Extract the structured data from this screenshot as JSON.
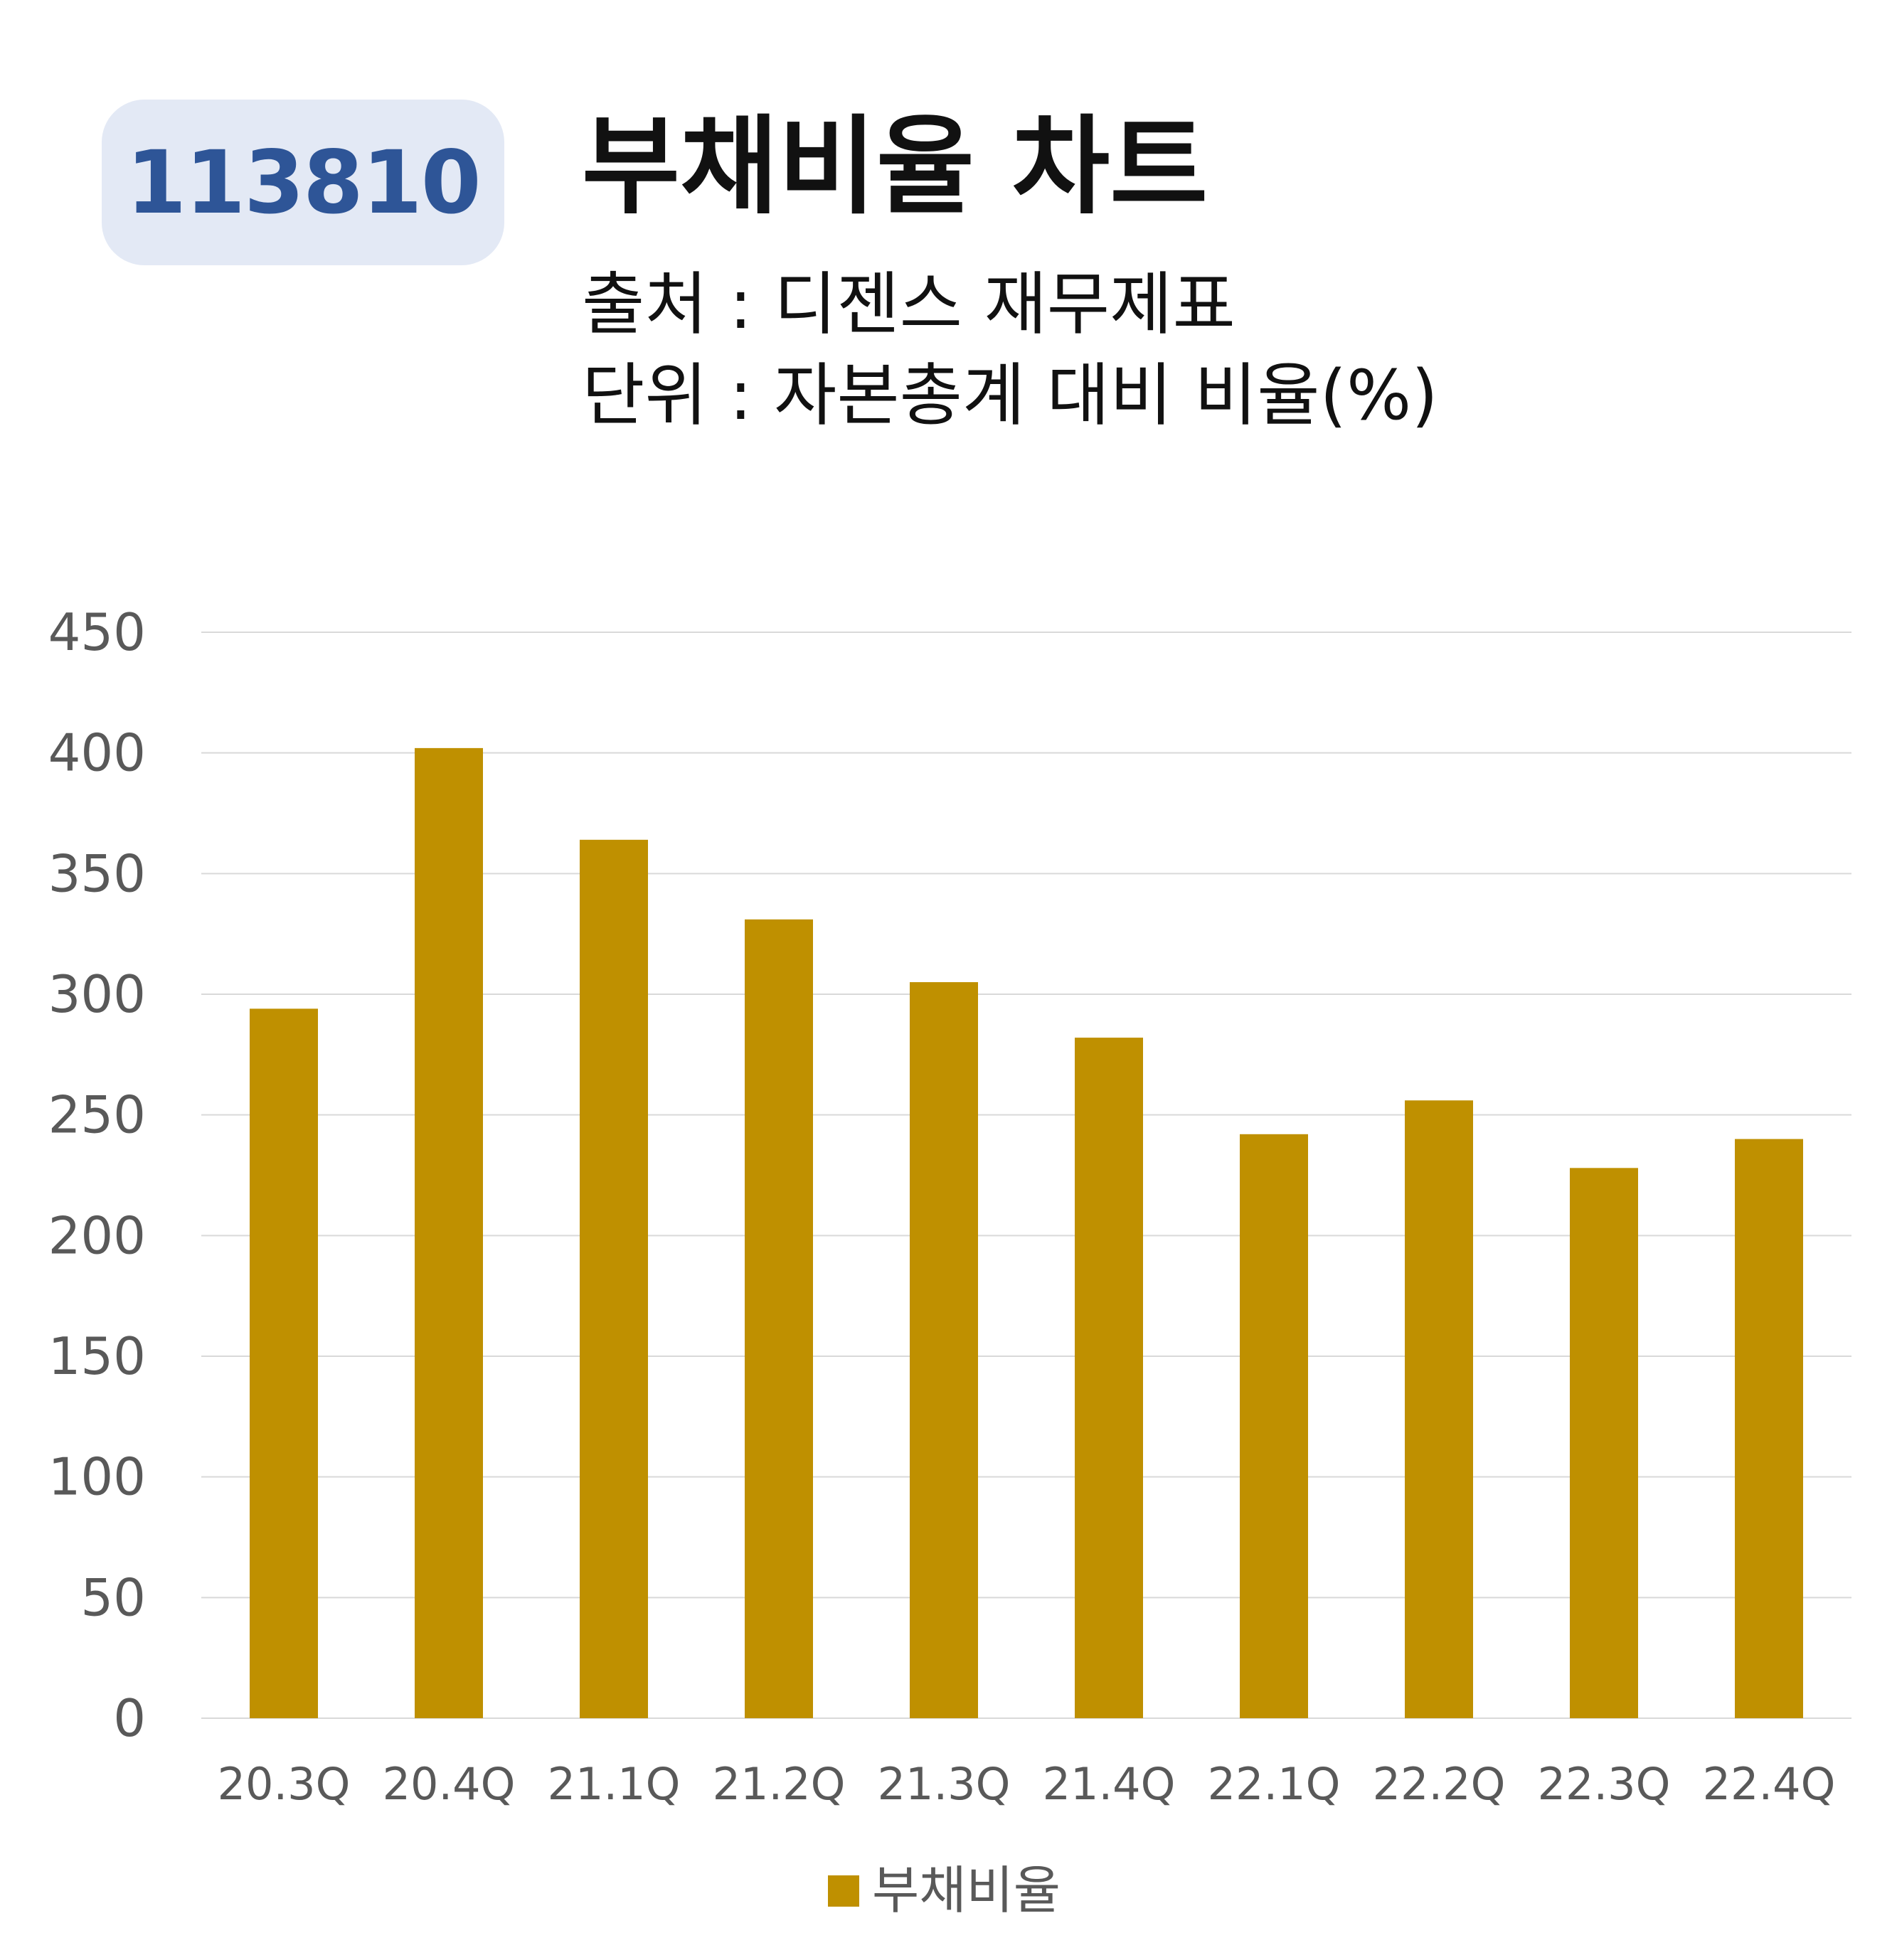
{
  "header": {
    "code": "113810",
    "title": "부채비율 차트",
    "source": "출처 : 디젠스 재무제표",
    "unit": "단위 : 자본총계 대비 비율(%)"
  },
  "colors": {
    "bar": "#bf9000",
    "badge_bg": "#e3e9f5",
    "badge_text": "#2e5597",
    "grid": "#d9d9d9",
    "axis_text": "#595959"
  },
  "chart_data": {
    "type": "bar",
    "categories": [
      "20.3Q",
      "20.4Q",
      "21.1Q",
      "21.2Q",
      "21.3Q",
      "21.4Q",
      "22.1Q",
      "22.2Q",
      "22.3Q",
      "22.4Q"
    ],
    "series": [
      {
        "name": "부채비율",
        "values": [
          294,
          402,
          364,
          331,
          305,
          282,
          242,
          256,
          228,
          240
        ]
      }
    ],
    "ylim": [
      0,
      450
    ],
    "yticks": [
      0,
      50,
      100,
      150,
      200,
      250,
      300,
      350,
      400,
      450
    ],
    "grid": true,
    "legend": "bottom"
  }
}
